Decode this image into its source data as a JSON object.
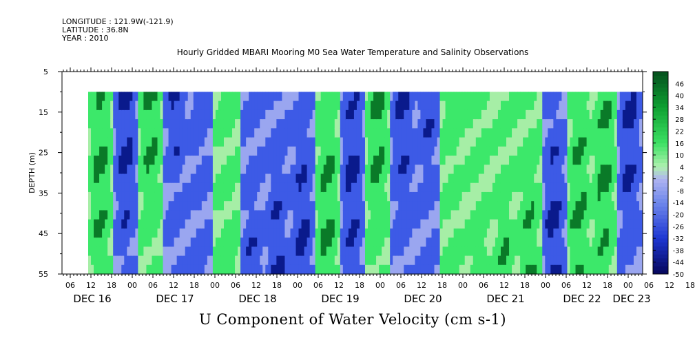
{
  "header": {
    "longitude": "LONGITUDE : 121.9W(-121.9)",
    "latitude": "LATITUDE : 36.8N",
    "year": "YEAR : 2010"
  },
  "chart_data": {
    "type": "heatmap",
    "title": "Hourly Gridded MBARI Mooring M0 Sea Water Temperature and Salinity Observations",
    "xlabel": "U Component of Water Velocity (cm s-1)",
    "ylabel": "DEPTH (m)",
    "ylim": [
      5,
      55
    ],
    "y_reversed": true,
    "y_ticks": [
      5,
      15,
      25,
      35,
      45,
      55
    ],
    "data_depth_range": [
      10,
      55
    ],
    "x_hour_tick_labels": [
      "06",
      "12",
      "18",
      "00",
      "06",
      "12",
      "18",
      "00",
      "06",
      "12",
      "18",
      "00",
      "06",
      "12",
      "18",
      "00",
      "06",
      "12",
      "18",
      "00",
      "06",
      "12",
      "18",
      "00",
      "06",
      "12",
      "18",
      "00",
      "06",
      "12",
      "18",
      "00"
    ],
    "x_day_labels": [
      "DEC 16",
      "DEC 17",
      "DEC 18",
      "DEC 19",
      "DEC 20",
      "DEC 21",
      "DEC 22",
      "DEC 23"
    ],
    "colorbar": {
      "labels": [
        "46",
        "40",
        "34",
        "28",
        "22",
        "16",
        "10",
        "4",
        "-2",
        "-8",
        "-14",
        "-20",
        "-26",
        "-32",
        "-38",
        "-44",
        "-50"
      ],
      "min": -50,
      "max": 52
    },
    "sign_pattern": [
      1,
      0,
      1,
      0,
      0,
      1,
      0,
      0,
      0,
      1,
      0,
      1,
      0,
      0,
      1,
      1,
      1,
      1,
      0,
      1,
      1,
      0
    ],
    "colors": {
      "strong_negative": "#0a1a8c",
      "negative": "#3d5ae6",
      "weak_negative": "#9aa6f0",
      "weak_positive": "#a6eea6",
      "positive": "#3ce86a",
      "strong_positive": "#0a7a28"
    }
  }
}
